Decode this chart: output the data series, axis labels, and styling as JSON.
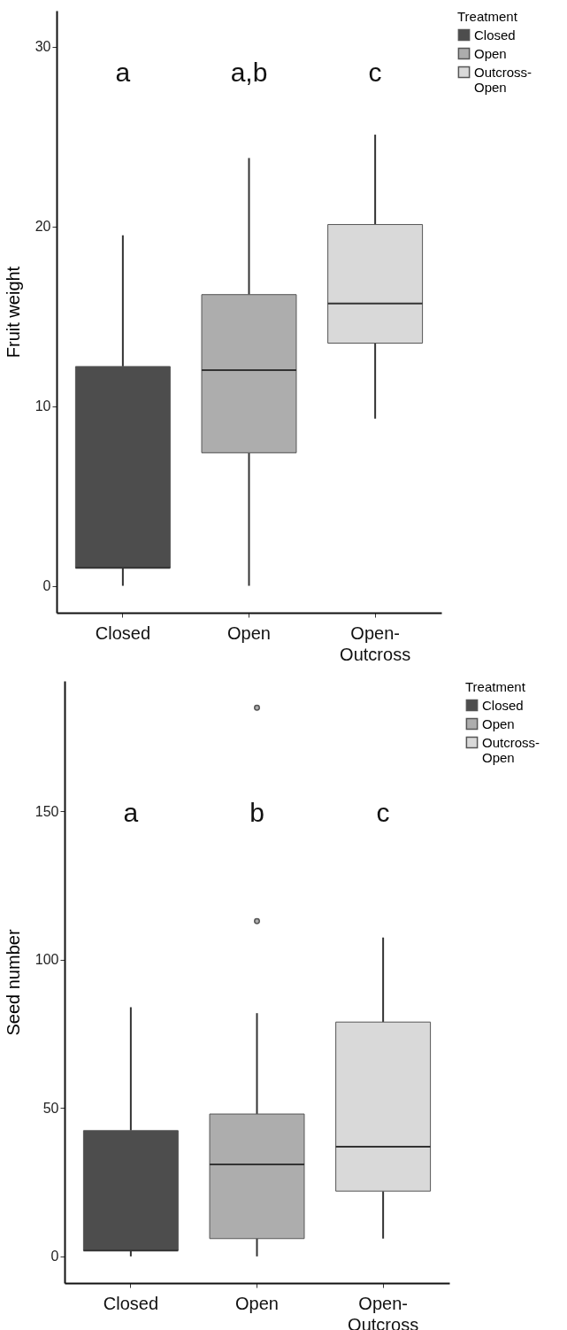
{
  "chart_data": [
    {
      "type": "box",
      "ylabel": "Fruit weight",
      "categories": [
        "Closed",
        "Open",
        "Open-Outcross"
      ],
      "legend": "right",
      "legend_title": "Treatment",
      "grid": false,
      "ylim": [
        -1.5,
        32
      ],
      "yticks": [
        0,
        10,
        20,
        30
      ],
      "series": [
        {
          "name": "Closed",
          "color": "#4d4d4d",
          "boxes": [
            {
              "low": 0,
              "q1": 1,
              "median": 1,
              "q3": 12.2,
              "high": 19.5
            },
            null,
            null
          ]
        },
        {
          "name": "Open",
          "color": "#adadad",
          "boxes": [
            null,
            {
              "low": 0,
              "q1": 7.4,
              "median": 12,
              "q3": 16.2,
              "high": 23.8
            },
            null
          ]
        },
        {
          "name": "Outcross-Open",
          "color": "#d9d9d9",
          "boxes": [
            null,
            null,
            {
              "low": 9.3,
              "q1": 13.5,
              "median": 15.7,
              "q3": 20.1,
              "high": 25.1
            }
          ]
        }
      ],
      "annotations": [
        "a",
        "a,b",
        "c"
      ]
    },
    {
      "type": "box",
      "ylabel": "Seed number",
      "categories": [
        "Closed",
        "Open",
        "Open-Outcross"
      ],
      "legend": "right",
      "legend_title": "Treatment",
      "grid": false,
      "ylim": [
        -9,
        194
      ],
      "yticks": [
        0,
        50,
        100,
        150
      ],
      "series": [
        {
          "name": "Closed",
          "color": "#4d4d4d",
          "boxes": [
            {
              "low": 0,
              "q1": 2,
              "median": 2,
              "q3": 42.4,
              "high": 84
            },
            null,
            null
          ]
        },
        {
          "name": "Open",
          "color": "#adadad",
          "boxes": [
            null,
            {
              "low": 0,
              "q1": 6,
              "median": 31,
              "q3": 48,
              "high": 82,
              "outliers": [
                113,
                185
              ]
            },
            null
          ]
        },
        {
          "name": "Outcross-Open",
          "color": "#d9d9d9",
          "boxes": [
            null,
            null,
            {
              "low": 6,
              "q1": 22,
              "median": 37,
              "q3": 79,
              "high": 107.5
            }
          ]
        }
      ],
      "annotations": [
        "a",
        "b",
        "c"
      ]
    }
  ]
}
